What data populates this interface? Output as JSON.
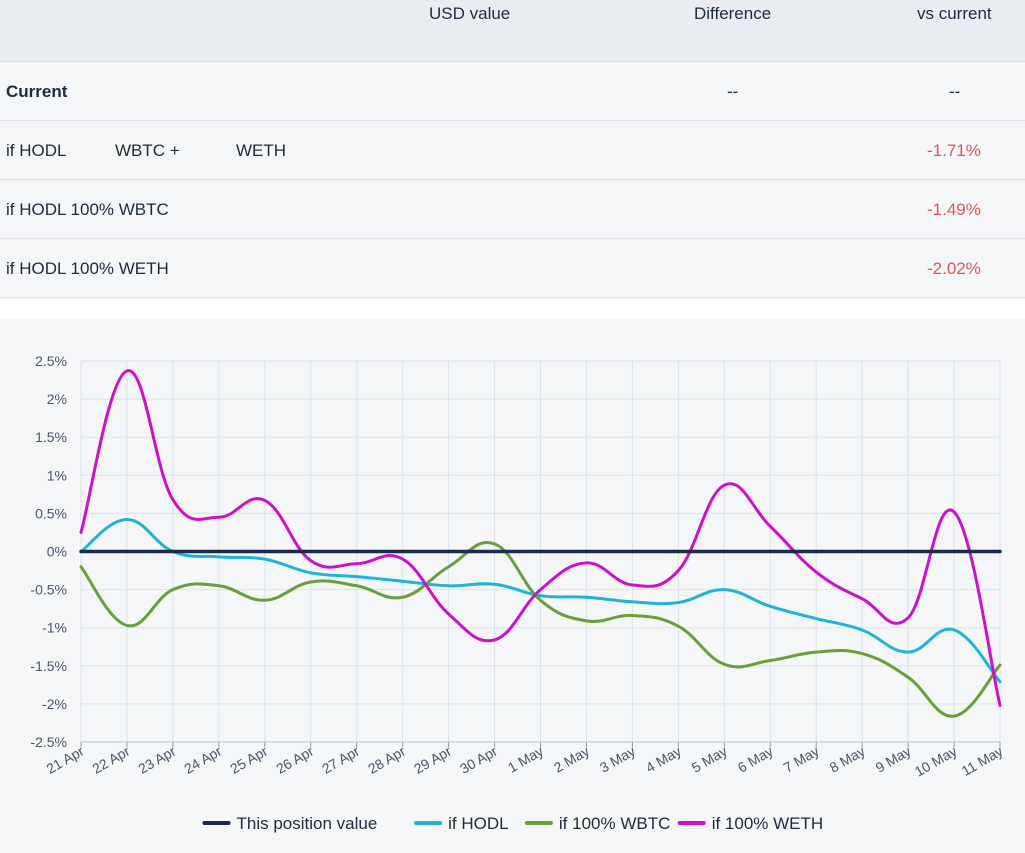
{
  "table": {
    "headers": {
      "usd": "USD value",
      "diff": "Difference",
      "vs": "vs current"
    },
    "rows": [
      {
        "label": "Current",
        "label_part2": "",
        "label_part3": "",
        "diff": "--",
        "vs": "--"
      },
      {
        "label": "if HODL",
        "label_part2": "WBTC +",
        "label_part3": "WETH",
        "diff": "",
        "vs": "-1.71%"
      },
      {
        "label": "if HODL 100% WBTC",
        "label_part2": "",
        "label_part3": "",
        "diff": "",
        "vs": "-1.49%"
      },
      {
        "label": "if HODL 100% WETH",
        "label_part2": "",
        "label_part3": "",
        "diff": "",
        "vs": "-2.02%"
      }
    ]
  },
  "chart_data": {
    "type": "line",
    "categories": [
      "21 Apr",
      "22 Apr",
      "23 Apr",
      "24 Apr",
      "25 Apr",
      "26 Apr",
      "27 Apr",
      "28 Apr",
      "29 Apr",
      "30 Apr",
      "1 May",
      "2 May",
      "3 May",
      "4 May",
      "5 May",
      "6 May",
      "7 May",
      "8 May",
      "9 May",
      "10 May",
      "11 May"
    ],
    "ylim": [
      -2.5,
      2.5
    ],
    "yticks": [
      2.5,
      2,
      1.5,
      1,
      0.5,
      0,
      -0.5,
      -1,
      -1.5,
      -2,
      -2.5
    ],
    "ytick_labels": [
      "2.5%",
      "2%",
      "1.5%",
      "1%",
      "0.5%",
      "0%",
      "-0.5%",
      "-1%",
      "-1.5%",
      "-2%",
      "-2.5%"
    ],
    "grid": true,
    "legend_position": "bottom",
    "series": [
      {
        "name": "This position value",
        "color": "#1b2a4a",
        "values": [
          0,
          0,
          0,
          0,
          0,
          0,
          0,
          0,
          0,
          0,
          0,
          0,
          0,
          0,
          0,
          0,
          0,
          0,
          0,
          0,
          0
        ]
      },
      {
        "name": "if HODL",
        "color": "#1fb3d9",
        "values": [
          0,
          0.42,
          0,
          -0.07,
          -0.1,
          -0.28,
          -0.33,
          -0.39,
          -0.45,
          -0.43,
          -0.58,
          -0.6,
          -0.66,
          -0.67,
          -0.5,
          -0.72,
          -0.88,
          -1.03,
          -1.32,
          -1.03,
          -1.71
        ]
      },
      {
        "name": "if 100% WBTC",
        "color": "#6a9e3a",
        "values": [
          -0.2,
          -0.97,
          -0.5,
          -0.45,
          -0.64,
          -0.4,
          -0.45,
          -0.6,
          -0.2,
          0.1,
          -0.64,
          -0.91,
          -0.84,
          -0.98,
          -1.48,
          -1.43,
          -1.32,
          -1.34,
          -1.65,
          -2.16,
          -1.49
        ]
      },
      {
        "name": "if 100% WETH",
        "color": "#cc11cc",
        "values": [
          0.25,
          2.37,
          0.68,
          0.45,
          0.67,
          -0.12,
          -0.16,
          -0.1,
          -0.82,
          -1.16,
          -0.5,
          -0.15,
          -0.44,
          -0.25,
          0.87,
          0.33,
          -0.27,
          -0.62,
          -0.87,
          0.52,
          -2.02
        ]
      }
    ]
  }
}
